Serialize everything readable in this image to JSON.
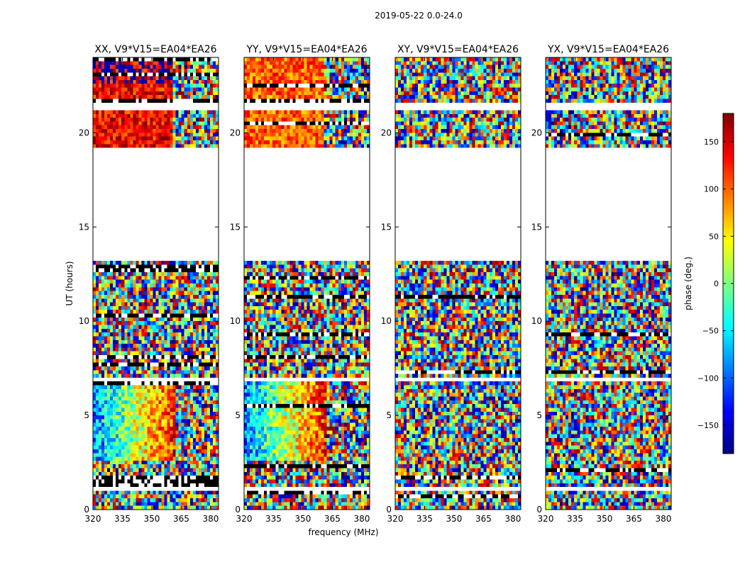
{
  "chart_data": {
    "type": "heatmap",
    "suptitle": "2019-05-22 0.0-24.0",
    "xlabel": "frequency (MHz)",
    "ylabel": "UT (hours)",
    "xlim": [
      320,
      384
    ],
    "ylim": [
      0,
      24
    ],
    "x_ticks": [
      320,
      335,
      350,
      365,
      380
    ],
    "y_ticks": [
      0,
      5,
      10,
      15,
      20
    ],
    "colorbar": {
      "label": "phase (deg.)",
      "range": [
        -180,
        180
      ],
      "ticks": [
        -150,
        -100,
        -50,
        0,
        50,
        100,
        150
      ],
      "tick_labels": [
        "−150",
        "−100",
        "−50",
        "0",
        "50",
        "100",
        "150"
      ],
      "colormap": "jet",
      "colors": [
        "#00007f",
        "#0000ff",
        "#007fff",
        "#00ffff",
        "#7fff7f",
        "#ffff00",
        "#ff7f00",
        "#ff0000",
        "#7f0000"
      ]
    },
    "data_gaps_ut_hours": [
      [
        13.2,
        19.2
      ],
      [
        21.3,
        21.5
      ],
      [
        1.05,
        1.3
      ],
      [
        6.85,
        7.0
      ]
    ],
    "panels": [
      {
        "title": "XX, V9*V15=EA04*EA26",
        "polarization": "XX",
        "structure": "coherent"
      },
      {
        "title": "YY, V9*V15=EA04*EA26",
        "polarization": "YY",
        "structure": "coherent"
      },
      {
        "title": "XY, V9*V15=EA04*EA26",
        "polarization": "XY",
        "structure": "noise"
      },
      {
        "title": "YX, V9*V15=EA04*EA26",
        "polarization": "YX",
        "structure": "noise"
      }
    ]
  }
}
